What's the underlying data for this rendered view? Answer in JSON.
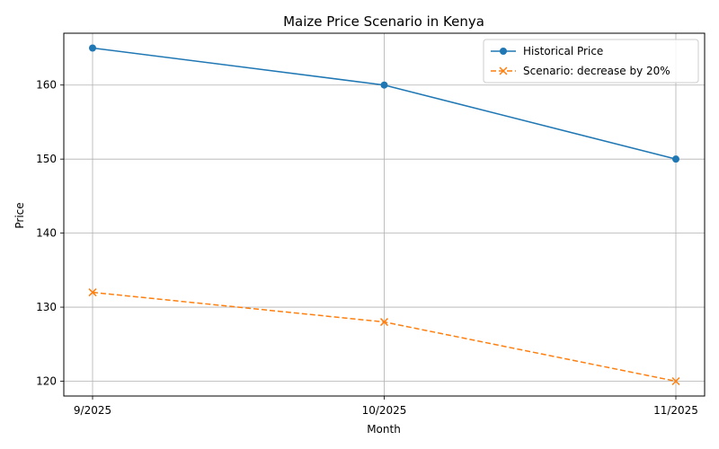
{
  "chart_data": {
    "type": "line",
    "title": "Maize Price Scenario in Kenya",
    "xlabel": "Month",
    "ylabel": "Price",
    "categories": [
      "9/2025",
      "10/2025",
      "11/2025"
    ],
    "ylim": [
      118,
      167
    ],
    "yticks": [
      120,
      130,
      140,
      150,
      160
    ],
    "grid": true,
    "legend_position": "top-right",
    "series": [
      {
        "name": "Historical Price",
        "values": [
          165,
          160,
          150
        ],
        "color": "#1f77b4",
        "marker": "circle",
        "line_style": "solid"
      },
      {
        "name": "Scenario: decrease by 20%",
        "values": [
          132,
          128,
          120
        ],
        "color": "#ff7f0e",
        "marker": "x",
        "line_style": "dashed"
      }
    ]
  }
}
